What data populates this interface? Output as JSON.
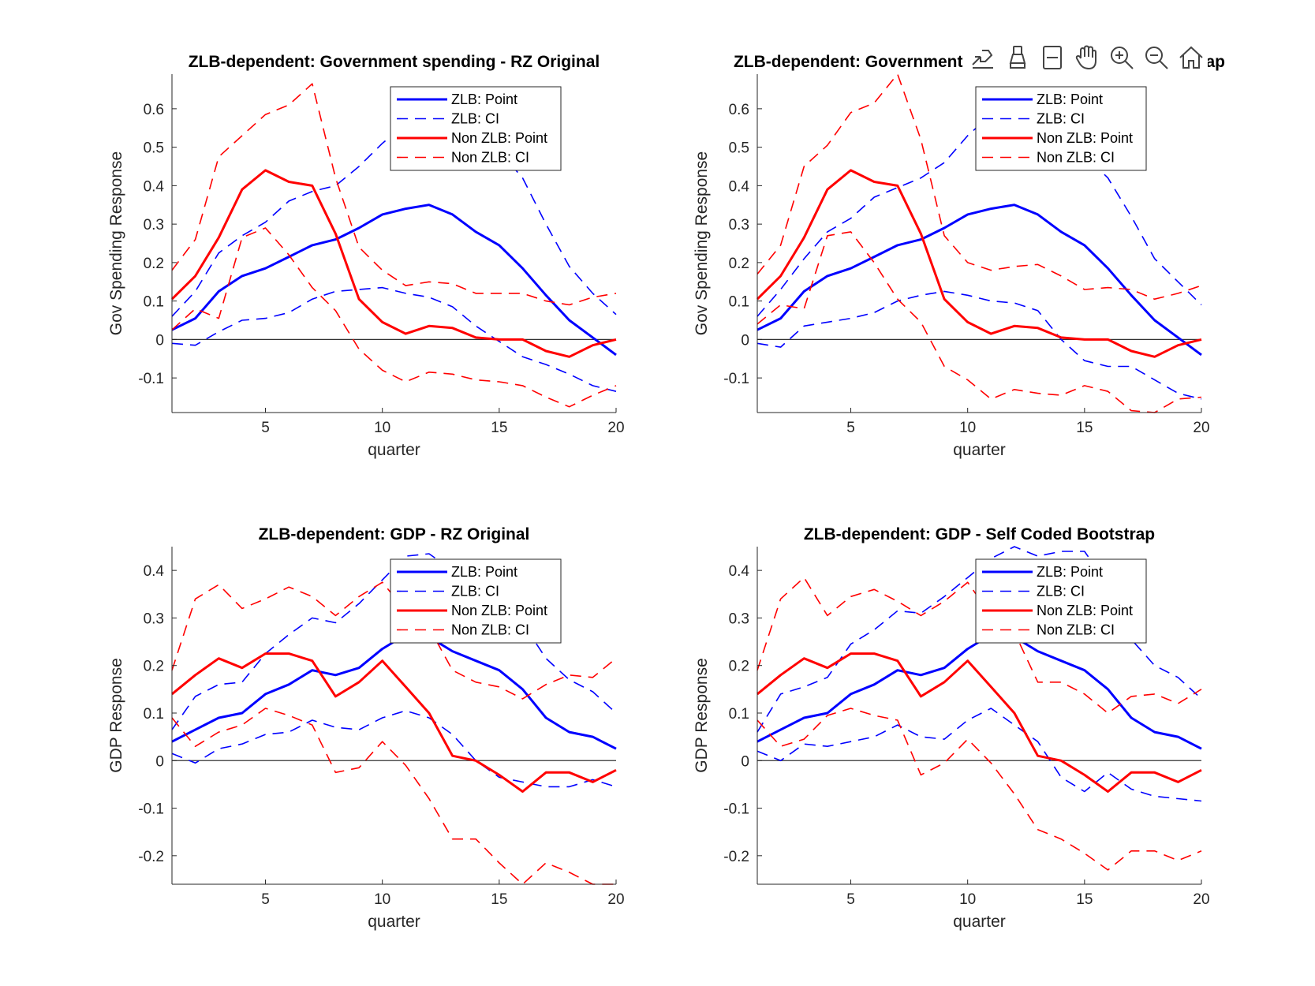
{
  "figure": {
    "background": "#ffffff"
  },
  "legend_labels": [
    "ZLB: Point",
    "ZLB: CI",
    "Non ZLB: Point",
    "Non ZLB: CI"
  ],
  "toolbar": {
    "icons": [
      "export-icon",
      "brush-icon",
      "data-tips-icon",
      "pan-icon",
      "zoom-in-icon",
      "zoom-out-icon",
      "home-icon"
    ]
  },
  "colors": {
    "zlb": "#0000ff",
    "nonzlb": "#ff0000",
    "zero_line": "#333333",
    "axis": "#262626"
  },
  "chart_data": [
    {
      "type": "line",
      "title": "ZLB-dependent: Government spending - RZ Original",
      "xlabel": "quarter",
      "ylabel": "Gov Spending Response",
      "xlim": [
        1,
        20
      ],
      "ylim": [
        -0.19,
        0.69
      ],
      "xticks": [
        5,
        10,
        15,
        20
      ],
      "yticks": [
        -0.1,
        0,
        0.1,
        0.2,
        0.3,
        0.4,
        0.5,
        0.6
      ],
      "ytick_labels": [
        "-0.1",
        "0",
        "0.1",
        "0.2",
        "0.3",
        "0.4",
        "0.5",
        "0.6"
      ],
      "legend_position": "top-right",
      "x": [
        1,
        2,
        3,
        4,
        5,
        6,
        7,
        8,
        9,
        10,
        11,
        12,
        13,
        14,
        15,
        16,
        17,
        18,
        19,
        20
      ],
      "series": [
        {
          "name": "ZLB: Point",
          "color": "#0000ff",
          "style": "solid",
          "values": [
            0.025,
            0.055,
            0.125,
            0.165,
            0.185,
            0.215,
            0.245,
            0.26,
            0.29,
            0.325,
            0.34,
            0.35,
            0.325,
            0.28,
            0.245,
            0.185,
            0.115,
            0.05,
            0.005,
            -0.04
          ]
        },
        {
          "name": "ZLB: CI lower",
          "legend": "ZLB: CI",
          "color": "#0000ff",
          "style": "dashed",
          "values": [
            -0.01,
            -0.015,
            0.02,
            0.05,
            0.055,
            0.07,
            0.105,
            0.125,
            0.13,
            0.135,
            0.12,
            0.11,
            0.085,
            0.035,
            -0.005,
            -0.045,
            -0.065,
            -0.09,
            -0.12,
            -0.135
          ]
        },
        {
          "name": "ZLB: CI upper",
          "color": "#0000ff",
          "style": "dashed",
          "values": [
            0.06,
            0.125,
            0.225,
            0.27,
            0.305,
            0.36,
            0.385,
            0.4,
            0.45,
            0.51,
            0.56,
            0.59,
            0.58,
            0.55,
            0.49,
            0.42,
            0.3,
            0.19,
            0.12,
            0.065
          ]
        },
        {
          "name": "Non ZLB: Point",
          "color": "#ff0000",
          "style": "solid",
          "values": [
            0.105,
            0.165,
            0.265,
            0.39,
            0.44,
            0.41,
            0.4,
            0.275,
            0.105,
            0.045,
            0.015,
            0.035,
            0.03,
            0.005,
            0.0,
            0.0,
            -0.03,
            -0.045,
            -0.015,
            0.0
          ]
        },
        {
          "name": "Non ZLB: CI lower",
          "legend": "Non ZLB: CI",
          "color": "#ff0000",
          "style": "dashed",
          "values": [
            0.025,
            0.08,
            0.055,
            0.265,
            0.29,
            0.22,
            0.135,
            0.075,
            -0.025,
            -0.08,
            -0.11,
            -0.085,
            -0.09,
            -0.105,
            -0.11,
            -0.12,
            -0.15,
            -0.175,
            -0.145,
            -0.12
          ]
        },
        {
          "name": "Non ZLB: CI upper",
          "color": "#ff0000",
          "style": "dashed",
          "values": [
            0.18,
            0.26,
            0.475,
            0.53,
            0.585,
            0.61,
            0.665,
            0.42,
            0.24,
            0.18,
            0.14,
            0.15,
            0.145,
            0.12,
            0.12,
            0.12,
            0.1,
            0.09,
            0.11,
            0.12
          ]
        }
      ]
    },
    {
      "type": "line",
      "title": "ZLB-dependent: Government spending - Self Coded Bootstrap",
      "xlabel": "quarter",
      "ylabel": "Gov Spending Response",
      "xlim": [
        1,
        20
      ],
      "ylim": [
        -0.19,
        0.69
      ],
      "xticks": [
        5,
        10,
        15,
        20
      ],
      "yticks": [
        -0.1,
        0,
        0.1,
        0.2,
        0.3,
        0.4,
        0.5,
        0.6
      ],
      "ytick_labels": [
        "-0.1",
        "0",
        "0.1",
        "0.2",
        "0.3",
        "0.4",
        "0.5",
        "0.6"
      ],
      "legend_position": "top-right",
      "x": [
        1,
        2,
        3,
        4,
        5,
        6,
        7,
        8,
        9,
        10,
        11,
        12,
        13,
        14,
        15,
        16,
        17,
        18,
        19,
        20
      ],
      "series": [
        {
          "name": "ZLB: Point",
          "color": "#0000ff",
          "style": "solid",
          "values": [
            0.025,
            0.055,
            0.125,
            0.165,
            0.185,
            0.215,
            0.245,
            0.26,
            0.29,
            0.325,
            0.34,
            0.35,
            0.325,
            0.28,
            0.245,
            0.185,
            0.115,
            0.05,
            0.005,
            -0.04
          ]
        },
        {
          "name": "ZLB: CI lower",
          "legend": "ZLB: CI",
          "color": "#0000ff",
          "style": "dashed",
          "values": [
            -0.01,
            -0.02,
            0.035,
            0.045,
            0.055,
            0.07,
            0.1,
            0.115,
            0.125,
            0.115,
            0.1,
            0.095,
            0.075,
            0.0,
            -0.055,
            -0.07,
            -0.07,
            -0.105,
            -0.14,
            -0.155
          ]
        },
        {
          "name": "ZLB: CI upper",
          "color": "#0000ff",
          "style": "dashed",
          "values": [
            0.06,
            0.13,
            0.21,
            0.28,
            0.315,
            0.37,
            0.395,
            0.42,
            0.46,
            0.53,
            0.585,
            0.605,
            0.58,
            0.55,
            0.48,
            0.42,
            0.32,
            0.21,
            0.15,
            0.09
          ]
        },
        {
          "name": "Non ZLB: Point",
          "color": "#ff0000",
          "style": "solid",
          "values": [
            0.105,
            0.165,
            0.265,
            0.39,
            0.44,
            0.41,
            0.4,
            0.275,
            0.105,
            0.045,
            0.015,
            0.035,
            0.03,
            0.005,
            0.0,
            0.0,
            -0.03,
            -0.045,
            -0.015,
            0.0
          ]
        },
        {
          "name": "Non ZLB: CI lower",
          "legend": "Non ZLB: CI",
          "color": "#ff0000",
          "style": "dashed",
          "values": [
            0.04,
            0.09,
            0.08,
            0.27,
            0.28,
            0.2,
            0.105,
            0.045,
            -0.07,
            -0.105,
            -0.155,
            -0.13,
            -0.14,
            -0.145,
            -0.12,
            -0.135,
            -0.185,
            -0.19,
            -0.155,
            -0.15
          ]
        },
        {
          "name": "Non ZLB: CI upper",
          "color": "#ff0000",
          "style": "dashed",
          "values": [
            0.17,
            0.245,
            0.45,
            0.505,
            0.59,
            0.615,
            0.69,
            0.52,
            0.27,
            0.2,
            0.18,
            0.19,
            0.195,
            0.165,
            0.13,
            0.135,
            0.13,
            0.105,
            0.12,
            0.14
          ]
        }
      ]
    },
    {
      "type": "line",
      "title": "ZLB-dependent: GDP - RZ Original",
      "xlabel": "quarter",
      "ylabel": "GDP Response",
      "xlim": [
        1,
        20
      ],
      "ylim": [
        -0.26,
        0.45
      ],
      "xticks": [
        5,
        10,
        15,
        20
      ],
      "yticks": [
        -0.2,
        -0.1,
        0,
        0.1,
        0.2,
        0.3,
        0.4
      ],
      "ytick_labels": [
        "-0.2",
        "-0.1",
        "0",
        "0.1",
        "0.2",
        "0.3",
        "0.4"
      ],
      "legend_position": "top-right",
      "x": [
        1,
        2,
        3,
        4,
        5,
        6,
        7,
        8,
        9,
        10,
        11,
        12,
        13,
        14,
        15,
        16,
        17,
        18,
        19,
        20
      ],
      "series": [
        {
          "name": "ZLB: Point",
          "color": "#0000ff",
          "style": "solid",
          "values": [
            0.04,
            0.065,
            0.09,
            0.1,
            0.14,
            0.16,
            0.19,
            0.18,
            0.195,
            0.235,
            0.265,
            0.26,
            0.23,
            0.21,
            0.19,
            0.15,
            0.09,
            0.06,
            0.05,
            0.025
          ]
        },
        {
          "name": "ZLB: CI lower",
          "legend": "ZLB: CI",
          "color": "#0000ff",
          "style": "dashed",
          "values": [
            0.015,
            -0.005,
            0.025,
            0.035,
            0.055,
            0.06,
            0.085,
            0.07,
            0.065,
            0.09,
            0.105,
            0.09,
            0.055,
            0.0,
            -0.035,
            -0.045,
            -0.055,
            -0.055,
            -0.04,
            -0.055
          ]
        },
        {
          "name": "ZLB: CI upper",
          "color": "#0000ff",
          "style": "dashed",
          "values": [
            0.065,
            0.135,
            0.16,
            0.165,
            0.225,
            0.265,
            0.3,
            0.29,
            0.33,
            0.38,
            0.43,
            0.435,
            0.4,
            0.37,
            0.33,
            0.29,
            0.215,
            0.17,
            0.145,
            0.1
          ]
        },
        {
          "name": "Non ZLB: Point",
          "color": "#ff0000",
          "style": "solid",
          "values": [
            0.14,
            0.18,
            0.215,
            0.195,
            0.225,
            0.225,
            0.21,
            0.135,
            0.165,
            0.21,
            0.155,
            0.1,
            0.01,
            0.0,
            -0.03,
            -0.065,
            -0.025,
            -0.025,
            -0.045,
            -0.02
          ]
        },
        {
          "name": "Non ZLB: CI lower",
          "legend": "Non ZLB: CI",
          "color": "#ff0000",
          "style": "dashed",
          "values": [
            0.09,
            0.03,
            0.06,
            0.075,
            0.11,
            0.095,
            0.075,
            -0.025,
            -0.015,
            0.04,
            -0.01,
            -0.08,
            -0.165,
            -0.165,
            -0.215,
            -0.26,
            -0.215,
            -0.235,
            -0.26,
            -0.26
          ]
        },
        {
          "name": "Non ZLB: CI upper",
          "color": "#ff0000",
          "style": "dashed",
          "values": [
            0.19,
            0.34,
            0.37,
            0.32,
            0.34,
            0.365,
            0.345,
            0.305,
            0.345,
            0.375,
            0.315,
            0.28,
            0.19,
            0.165,
            0.155,
            0.13,
            0.16,
            0.18,
            0.175,
            0.215
          ]
        }
      ]
    },
    {
      "type": "line",
      "title": "ZLB-dependent: GDP - Self Coded Bootstrap",
      "xlabel": "quarter",
      "ylabel": "GDP Response",
      "xlim": [
        1,
        20
      ],
      "ylim": [
        -0.26,
        0.45
      ],
      "xticks": [
        5,
        10,
        15,
        20
      ],
      "yticks": [
        -0.2,
        -0.1,
        0,
        0.1,
        0.2,
        0.3,
        0.4
      ],
      "ytick_labels": [
        "-0.2",
        "-0.1",
        "0",
        "0.1",
        "0.2",
        "0.3",
        "0.4"
      ],
      "legend_position": "top-right",
      "x": [
        1,
        2,
        3,
        4,
        5,
        6,
        7,
        8,
        9,
        10,
        11,
        12,
        13,
        14,
        15,
        16,
        17,
        18,
        19,
        20
      ],
      "series": [
        {
          "name": "ZLB: Point",
          "color": "#0000ff",
          "style": "solid",
          "values": [
            0.04,
            0.065,
            0.09,
            0.1,
            0.14,
            0.16,
            0.19,
            0.18,
            0.195,
            0.235,
            0.265,
            0.26,
            0.23,
            0.21,
            0.19,
            0.15,
            0.09,
            0.06,
            0.05,
            0.025
          ]
        },
        {
          "name": "ZLB: CI lower",
          "legend": "ZLB: CI",
          "color": "#0000ff",
          "style": "dashed",
          "values": [
            0.02,
            0.0,
            0.035,
            0.03,
            0.04,
            0.05,
            0.075,
            0.05,
            0.045,
            0.085,
            0.11,
            0.075,
            0.04,
            -0.035,
            -0.065,
            -0.025,
            -0.06,
            -0.075,
            -0.08,
            -0.085
          ]
        },
        {
          "name": "ZLB: CI upper",
          "color": "#0000ff",
          "style": "dashed",
          "values": [
            0.06,
            0.14,
            0.155,
            0.175,
            0.245,
            0.275,
            0.315,
            0.31,
            0.345,
            0.385,
            0.425,
            0.45,
            0.43,
            0.44,
            0.44,
            0.37,
            0.255,
            0.2,
            0.175,
            0.13
          ]
        },
        {
          "name": "Non ZLB: Point",
          "color": "#ff0000",
          "style": "solid",
          "values": [
            0.14,
            0.18,
            0.215,
            0.195,
            0.225,
            0.225,
            0.21,
            0.135,
            0.165,
            0.21,
            0.155,
            0.1,
            0.01,
            0.0,
            -0.03,
            -0.065,
            -0.025,
            -0.025,
            -0.045,
            -0.02
          ]
        },
        {
          "name": "Non ZLB: CI lower",
          "legend": "Non ZLB: CI",
          "color": "#ff0000",
          "style": "dashed",
          "values": [
            0.085,
            0.03,
            0.045,
            0.095,
            0.11,
            0.095,
            0.085,
            -0.03,
            -0.005,
            0.045,
            -0.005,
            -0.07,
            -0.145,
            -0.165,
            -0.195,
            -0.23,
            -0.19,
            -0.19,
            -0.21,
            -0.19
          ]
        },
        {
          "name": "Non ZLB: CI upper",
          "color": "#ff0000",
          "style": "dashed",
          "values": [
            0.19,
            0.34,
            0.385,
            0.305,
            0.345,
            0.36,
            0.335,
            0.305,
            0.335,
            0.375,
            0.305,
            0.27,
            0.165,
            0.165,
            0.14,
            0.1,
            0.135,
            0.14,
            0.12,
            0.15
          ]
        }
      ]
    }
  ]
}
